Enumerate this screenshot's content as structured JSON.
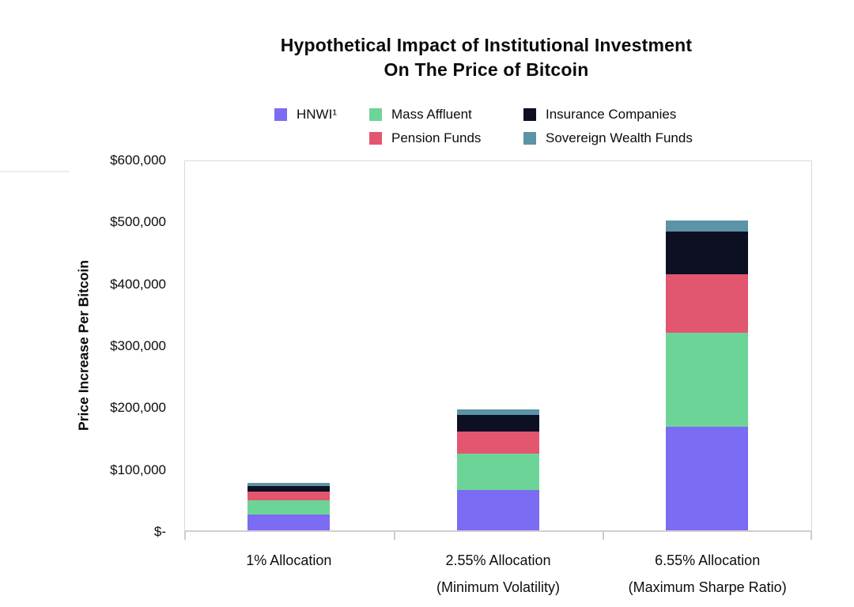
{
  "chart_data": {
    "type": "bar",
    "stacked": true,
    "title_lines": [
      "Hypothetical Impact of Institutional Investment",
      "On The Price of Bitcoin"
    ],
    "title": "Hypothetical Impact of Institutional Investment On The Price of Bitcoin",
    "ylabel": "Price Increase Per Bitcoin",
    "xlabel": "",
    "ylim": [
      0,
      600000
    ],
    "grid": false,
    "legend_position": "top-center",
    "y_tick_labels_top_down": [
      "$600,000",
      "$500,000",
      "$400,000",
      "$300,000",
      "$200,000",
      "$100,000",
      "$-"
    ],
    "categories": [
      "1% Allocation",
      "2.55% Allocation (Minimum Volatility)",
      "6.55% Allocation (Maximum Sharpe Ratio)"
    ],
    "category_label_lines": [
      [
        "1% Allocation"
      ],
      [
        "2.55% Allocation",
        "(Minimum Volatility)"
      ],
      [
        "6.55% Allocation",
        "(Maximum Sharpe Ratio)"
      ]
    ],
    "series": [
      {
        "name": "HNWI",
        "legend_label": "HNWI¹",
        "color": "#7C6BF3",
        "values": [
          26000,
          65000,
          167000
        ]
      },
      {
        "name": "Mass Affluent",
        "legend_label": "Mass Affluent",
        "color": "#6DD497",
        "values": [
          23000,
          59000,
          152000
        ]
      },
      {
        "name": "Pension Funds",
        "legend_label": "Pension Funds",
        "color": "#E25670",
        "values": [
          13000,
          36000,
          95000
        ]
      },
      {
        "name": "Insurance Companies",
        "legend_label": "Insurance Companies",
        "color": "#0D0F23",
        "values": [
          10000,
          27000,
          69000
        ]
      },
      {
        "name": "Sovereign Wealth Funds",
        "legend_label": "Sovereign Wealth Funds",
        "color": "#5B93A7",
        "values": [
          5000,
          9000,
          17000
        ]
      }
    ],
    "stack_order_bottom_to_top": [
      "HNWI",
      "Mass Affluent",
      "Pension Funds",
      "Insurance Companies",
      "Sovereign Wealth Funds"
    ],
    "totals": [
      77000,
      196000,
      500000
    ]
  },
  "style": {
    "plot_border_color": "#d9d9d9",
    "tick_color": "#cccccc",
    "text_color": "#0c0c0c"
  }
}
